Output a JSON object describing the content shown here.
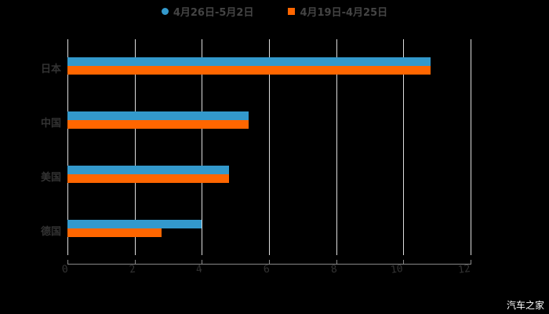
{
  "chart_data": {
    "type": "bar",
    "orientation": "horizontal",
    "title": "",
    "categories": [
      "日本",
      "中国",
      "美国",
      "德国"
    ],
    "series": [
      {
        "name": "4月26日-5月2日",
        "color": "#3399cc",
        "values": [
          10.8,
          5.4,
          4.8,
          4.0
        ]
      },
      {
        "name": "4月19日-4月25日",
        "color": "#ff6600",
        "values": [
          10.8,
          5.4,
          4.8,
          2.8
        ]
      }
    ],
    "xlabel": "",
    "ylabel": "",
    "xlim": [
      0,
      12
    ],
    "xticks": [
      "0",
      "2",
      "4",
      "6",
      "8",
      "10",
      "12"
    ],
    "grid": true,
    "legend_position": "top"
  },
  "legend": [
    {
      "label": "4月26日-5月2日",
      "color": "#3399cc",
      "marker": "circle"
    },
    {
      "label": "4月19日-4月25日",
      "color": "#ff6600",
      "marker": "square"
    }
  ],
  "watermark": "汽车之家"
}
